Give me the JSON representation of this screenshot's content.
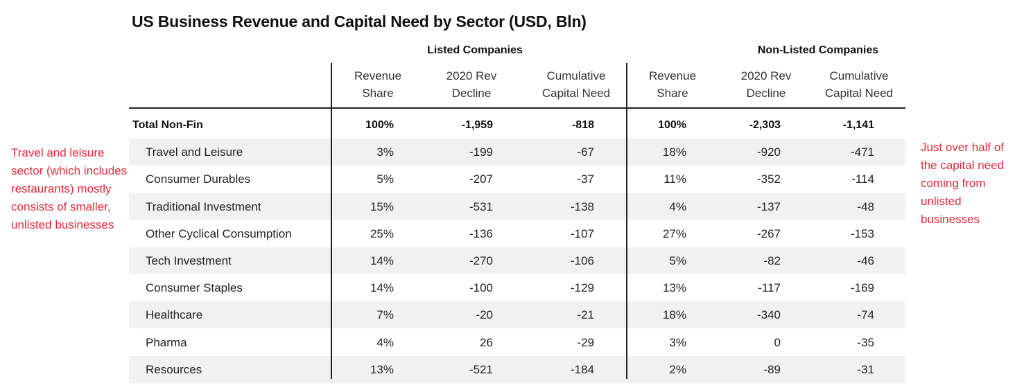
{
  "title": "US Business Revenue and Capital Need by Sector (USD, Bln)",
  "groups": {
    "listed": "Listed Companies",
    "non_listed": "Non-Listed Companies"
  },
  "columns": {
    "rev_share": "Revenue\nShare",
    "rev_decline": "2020 Rev\nDecline",
    "cap_need": "Cumulative\nCapital Need"
  },
  "total": {
    "label": "Total Non-Fin",
    "listed": [
      "100%",
      "-1,959",
      "-818"
    ],
    "non_listed": [
      "100%",
      "-2,303",
      "-1,141"
    ]
  },
  "rows": [
    {
      "label": "Travel and Leisure",
      "listed": [
        "3%",
        "-199",
        "-67"
      ],
      "non_listed": [
        "18%",
        "-920",
        "-471"
      ]
    },
    {
      "label": "Consumer Durables",
      "listed": [
        "5%",
        "-207",
        "-37"
      ],
      "non_listed": [
        "11%",
        "-352",
        "-114"
      ]
    },
    {
      "label": "Traditional Investment",
      "listed": [
        "15%",
        "-531",
        "-138"
      ],
      "non_listed": [
        "4%",
        "-137",
        "-48"
      ]
    },
    {
      "label": "Other Cyclical Consumption",
      "listed": [
        "25%",
        "-136",
        "-107"
      ],
      "non_listed": [
        "27%",
        "-267",
        "-153"
      ]
    },
    {
      "label": "Tech Investment",
      "listed": [
        "14%",
        "-270",
        "-106"
      ],
      "non_listed": [
        "5%",
        "-82",
        "-46"
      ]
    },
    {
      "label": "Consumer Staples",
      "listed": [
        "14%",
        "-100",
        "-129"
      ],
      "non_listed": [
        "13%",
        "-117",
        "-169"
      ]
    },
    {
      "label": "Healthcare",
      "listed": [
        "7%",
        "-20",
        "-21"
      ],
      "non_listed": [
        "18%",
        "-340",
        "-74"
      ]
    },
    {
      "label": "Pharma",
      "listed": [
        "4%",
        "26",
        "-29"
      ],
      "non_listed": [
        "3%",
        "0",
        "-35"
      ]
    },
    {
      "label": "Resources",
      "listed": [
        "13%",
        "-521",
        "-184"
      ],
      "non_listed": [
        "2%",
        "-89",
        "-31"
      ]
    }
  ],
  "notes": {
    "left": "Travel and leisure sector (which includes restaurants) mostly consists of smaller, unlisted businesses",
    "right": "Just over half of the capital need coming from unlisted businesses"
  },
  "colors": {
    "annotation": "#e8283a",
    "shade": "#f1f1f1",
    "rule": "#222222"
  }
}
